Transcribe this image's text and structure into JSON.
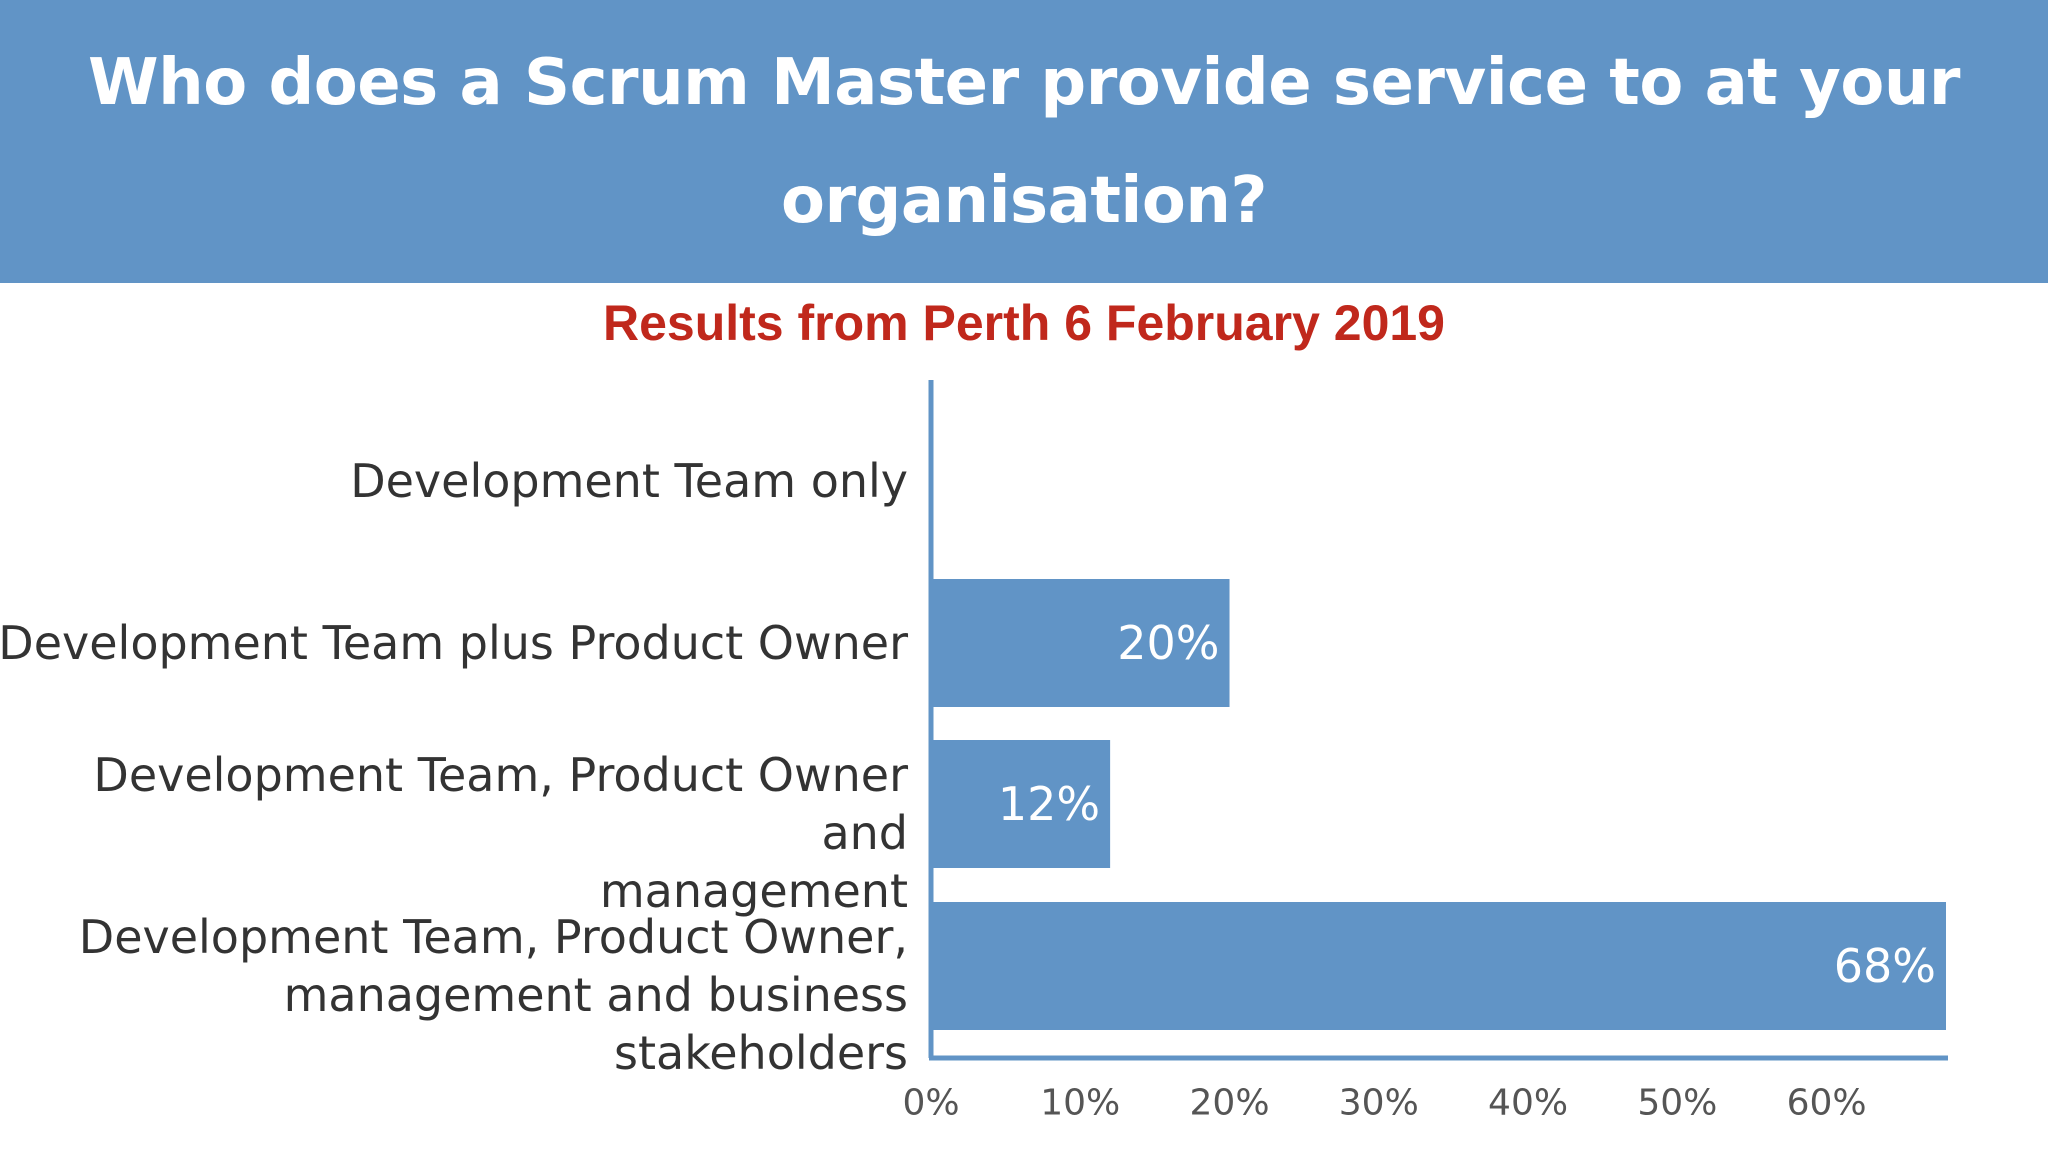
{
  "header": {
    "title": "Who does a Scrum Master provide service to at your organisation?"
  },
  "subtitle": "Results from Perth 6 February 2019",
  "colors": {
    "header_bg": "#6194c6",
    "bar": "#6194c6",
    "axis": "#6194c6",
    "subtitle": "#c0281c",
    "label_text": "#333333",
    "bar_label_text": "#ffffff",
    "tick_text": "#555555"
  },
  "chart_data": {
    "type": "bar",
    "orientation": "horizontal",
    "title": "Who does a Scrum Master provide service to at your organisation?",
    "subtitle": "Results from Perth 6 February 2019",
    "categories": [
      "Development Team only",
      "Development Team plus Product Owner",
      "Development Team, Product Owner and management",
      "Development Team, Product Owner, management and business stakeholders"
    ],
    "category_lines": [
      [
        "Development Team only"
      ],
      [
        "Development Team plus Product Owner"
      ],
      [
        "Development Team, Product Owner and",
        "management"
      ],
      [
        "Development Team, Product Owner,",
        "management and business stakeholders"
      ]
    ],
    "values": [
      0,
      20,
      12,
      68
    ],
    "data_labels": [
      "",
      "20%",
      "12%",
      "68%"
    ],
    "xlim": [
      0,
      68
    ],
    "xticks": [
      0,
      10,
      20,
      30,
      40,
      50,
      60
    ],
    "xtick_labels": [
      "0%",
      "10%",
      "20%",
      "30%",
      "40%",
      "50%",
      "60%"
    ],
    "xlabel": "",
    "ylabel": "",
    "grid": false,
    "legend": "none"
  }
}
